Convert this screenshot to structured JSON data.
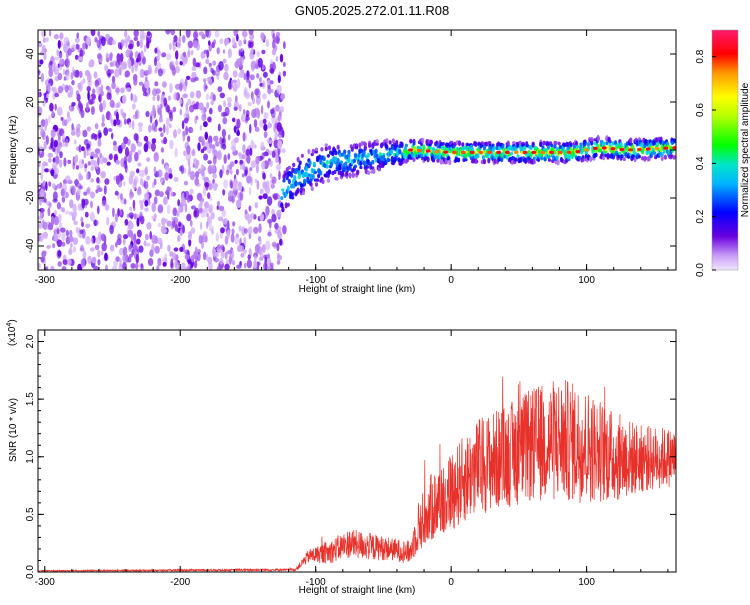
{
  "title": "GN05.2025.272.01.11.R08",
  "chart_data": [
    {
      "type": "heatmap",
      "name": "spectrogram",
      "xlabel": "Height of straight line (km)",
      "ylabel": "Frequency (Hz)",
      "xlim": [
        -305,
        166
      ],
      "ylim": [
        -50,
        50
      ],
      "xticks": [
        -300,
        -200,
        -100,
        0,
        100
      ],
      "yticks": [
        -40,
        -20,
        0,
        20,
        40
      ],
      "noise_region_x": [
        -305,
        -123
      ],
      "signal_line": {
        "x": [
          -125,
          -110,
          -90,
          -70,
          -50,
          -35,
          -30,
          0,
          30,
          60,
          90,
          110,
          130,
          166
        ],
        "freq": [
          -18,
          -10,
          -5,
          -4,
          -2,
          -1,
          0,
          -1,
          -1,
          -1,
          -1,
          1,
          0,
          1
        ]
      },
      "colorbar": {
        "label": "Normalized spectral amplitude",
        "range": [
          0.0,
          0.9
        ],
        "ticks": [
          "0.0",
          "0.2",
          "0.4",
          "0.6",
          "0.8"
        ],
        "tick_values": [
          0.0,
          0.2,
          0.4,
          0.6,
          0.8
        ]
      }
    },
    {
      "type": "line",
      "name": "snr",
      "xlabel": "Height of straight line (km)",
      "ylabel": "SNR (10 * v/v)",
      "multiplier_label": "(x10",
      "multiplier_exp": "4",
      "color": "#e8312a",
      "xlim": [
        -305,
        166
      ],
      "ylim": [
        0.0,
        2.1
      ],
      "xticks": [
        -300,
        -200,
        -100,
        0,
        100
      ],
      "yticks": [
        "0.0",
        "0.5",
        "1.0",
        "1.5",
        "2.0"
      ],
      "ytick_values": [
        0.0,
        0.5,
        1.0,
        1.5,
        2.0
      ],
      "envelope": {
        "x": [
          -305,
          -115,
          -105,
          -90,
          -75,
          -60,
          -45,
          -30,
          -25,
          -15,
          0,
          20,
          40,
          60,
          80,
          100,
          120,
          140,
          166
        ],
        "mean": [
          0.01,
          0.02,
          0.14,
          0.17,
          0.25,
          0.22,
          0.2,
          0.17,
          0.38,
          0.55,
          0.7,
          0.92,
          1.0,
          1.1,
          1.15,
          1.1,
          1.0,
          0.98,
          1.0
        ],
        "amp": [
          0.004,
          0.01,
          0.06,
          0.1,
          0.13,
          0.12,
          0.1,
          0.1,
          0.22,
          0.3,
          0.35,
          0.42,
          0.45,
          0.5,
          0.55,
          0.5,
          0.4,
          0.3,
          0.25
        ]
      }
    }
  ]
}
